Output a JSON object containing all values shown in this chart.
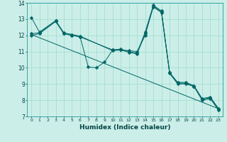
{
  "title": "",
  "xlabel": "Humidex (Indice chaleur)",
  "ylabel": "",
  "bg_color": "#cceee8",
  "grid_color": "#99ddcc",
  "line_color": "#006666",
  "xlim": [
    -0.5,
    23.5
  ],
  "ylim": [
    7,
    14
  ],
  "xticks": [
    0,
    1,
    2,
    3,
    4,
    5,
    6,
    7,
    8,
    9,
    10,
    11,
    12,
    13,
    14,
    15,
    16,
    17,
    18,
    19,
    20,
    21,
    22,
    23
  ],
  "yticks": [
    7,
    8,
    9,
    10,
    11,
    12,
    13,
    14
  ],
  "series": [
    {
      "x": [
        0,
        1,
        3,
        4,
        5,
        6,
        10,
        11,
        12,
        13,
        14,
        15,
        16,
        17,
        18,
        19,
        20,
        21,
        22,
        23
      ],
      "y": [
        13.1,
        12.2,
        12.9,
        12.1,
        12.0,
        11.9,
        11.1,
        11.15,
        11.0,
        10.9,
        12.2,
        13.85,
        13.5,
        9.7,
        9.1,
        9.1,
        8.9,
        8.1,
        8.2,
        7.5
      ]
    },
    {
      "x": [
        0,
        1,
        3,
        4,
        5,
        6,
        7,
        8,
        9,
        10,
        11,
        12,
        13,
        14,
        15,
        16,
        17,
        18,
        19,
        20,
        21,
        22,
        23
      ],
      "y": [
        12.0,
        12.1,
        12.85,
        12.1,
        12.0,
        11.9,
        10.05,
        10.0,
        10.35,
        11.1,
        11.1,
        11.05,
        11.0,
        12.0,
        13.8,
        13.45,
        9.7,
        9.05,
        9.05,
        8.85,
        8.05,
        8.15,
        7.45
      ]
    },
    {
      "x": [
        0,
        1,
        3,
        4,
        5,
        6,
        10,
        11,
        12,
        13,
        14,
        15,
        16,
        17,
        18,
        19,
        20,
        21,
        22,
        23
      ],
      "y": [
        12.1,
        12.15,
        12.9,
        12.15,
        12.05,
        11.95,
        11.05,
        11.1,
        10.95,
        10.85,
        12.1,
        13.75,
        13.4,
        9.65,
        9.0,
        9.0,
        8.85,
        8.0,
        8.1,
        7.4
      ]
    },
    {
      "x": [
        0,
        23
      ],
      "y": [
        12.05,
        7.48
      ]
    }
  ]
}
